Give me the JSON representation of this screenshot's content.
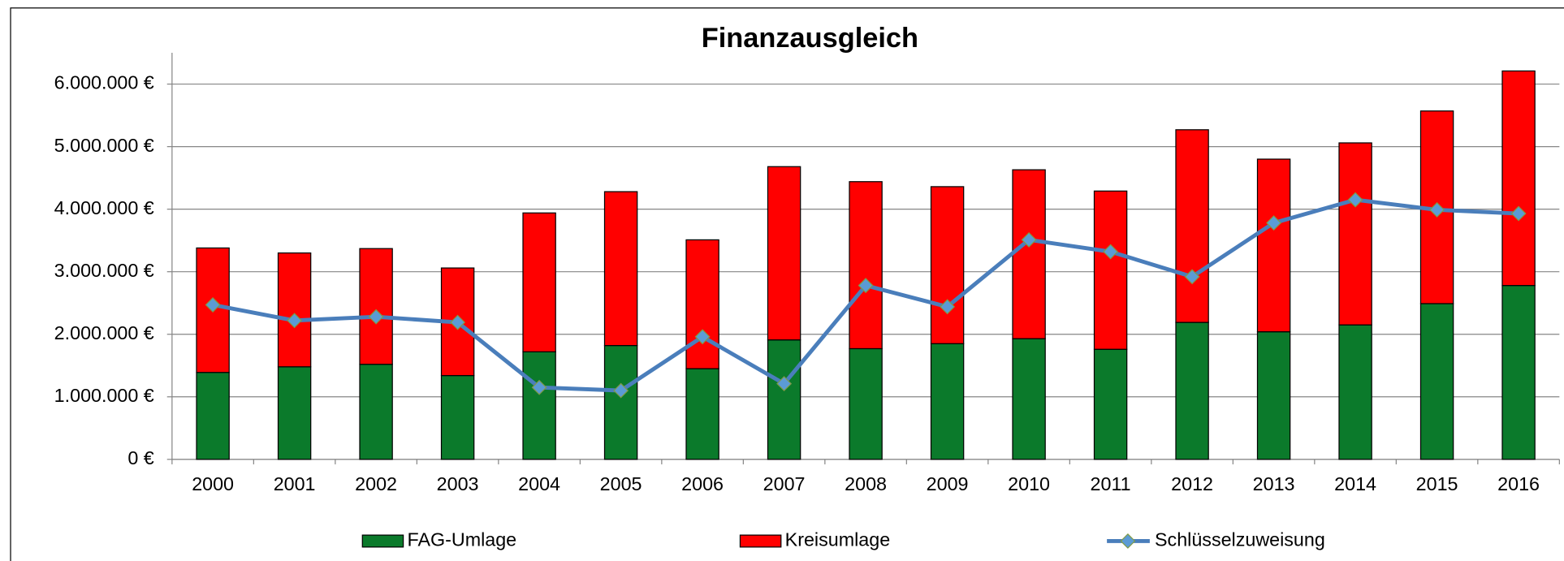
{
  "chart_data": {
    "type": "stacked_bar_line",
    "title": "Finanzausgleich",
    "categories": [
      "2000",
      "2001",
      "2002",
      "2003",
      "2004",
      "2005",
      "2006",
      "2007",
      "2008",
      "2009",
      "2010",
      "2011",
      "2012",
      "2013",
      "2014",
      "2015",
      "2016"
    ],
    "series": [
      {
        "name": "FAG-Umlage",
        "type": "bar",
        "color": "#0b7a2b",
        "values": [
          1390000,
          1480000,
          1520000,
          1340000,
          1720000,
          1820000,
          1450000,
          1910000,
          1770000,
          1850000,
          1930000,
          1760000,
          2190000,
          2040000,
          2150000,
          2490000,
          2780000
        ]
      },
      {
        "name": "Kreisumlage",
        "type": "bar",
        "color": "#ff0000",
        "values": [
          1990000,
          1820000,
          1850000,
          1720000,
          2220000,
          2460000,
          2060000,
          2770000,
          2670000,
          2510000,
          2700000,
          2530000,
          3080000,
          2760000,
          2910000,
          3080000,
          3430000
        ]
      },
      {
        "name": "Schlüsselzuweisung",
        "type": "line",
        "color": "#4a7ebb",
        "marker_color": "#5b9bd5",
        "values": [
          2470000,
          2220000,
          2280000,
          2190000,
          1150000,
          1100000,
          1960000,
          1210000,
          2780000,
          2440000,
          3510000,
          3320000,
          2920000,
          3780000,
          4150000,
          3990000,
          3930000
        ]
      }
    ],
    "ylim": [
      0,
      6500000
    ],
    "yticks": [
      {
        "value": 0,
        "label": "0 €"
      },
      {
        "value": 1000000,
        "label": "1.000.000 €"
      },
      {
        "value": 2000000,
        "label": "2.000.000 €"
      },
      {
        "value": 3000000,
        "label": "3.000.000 €"
      },
      {
        "value": 4000000,
        "label": "4.000.000 €"
      },
      {
        "value": 5000000,
        "label": "5.000.000 €"
      },
      {
        "value": 6000000,
        "label": "6.000.000 €"
      }
    ],
    "grid": true,
    "legend": "bottom"
  }
}
